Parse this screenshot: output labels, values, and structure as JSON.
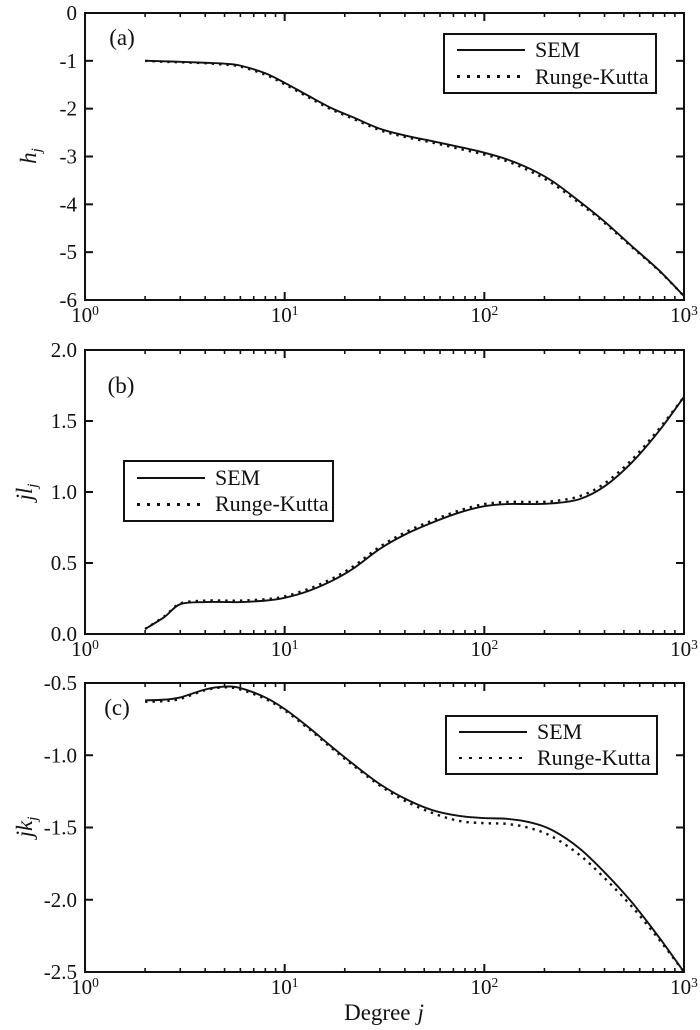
{
  "figure": {
    "background": "#ffffff",
    "ink": "#111111",
    "xlabel": {
      "text": "Degree",
      "var": "j"
    }
  },
  "legend": {
    "items": [
      {
        "label": "SEM",
        "style": "solid"
      },
      {
        "label": "Runge-Kutta",
        "style": "dotted"
      }
    ]
  },
  "chart_data": [
    {
      "type": "line",
      "panel_label": "(a)",
      "ylabel": {
        "main": "h",
        "sub": "j"
      },
      "xscale": "log",
      "xlim": [
        1,
        1000
      ],
      "ylim": [
        -6,
        0
      ],
      "xticks": [
        1,
        10,
        100,
        1000
      ],
      "yticks": [
        0,
        -1,
        -2,
        -3,
        -4,
        -5,
        -6
      ],
      "ytick_labels": [
        "0",
        "-1",
        "-2",
        "-3",
        "-4",
        "-5",
        "-6"
      ],
      "grid": false,
      "legend_position": "top-right",
      "x": [
        2,
        2.5,
        3,
        4,
        5,
        6,
        8,
        10,
        13,
        17,
        22,
        30,
        40,
        55,
        75,
        100,
        130,
        170,
        220,
        300,
        400,
        550,
        750,
        1000
      ],
      "series": [
        {
          "name": "SEM",
          "style": "solid",
          "y": [
            -1.0,
            -1.01,
            -1.02,
            -1.04,
            -1.06,
            -1.1,
            -1.26,
            -1.46,
            -1.72,
            -1.98,
            -2.18,
            -2.42,
            -2.56,
            -2.68,
            -2.8,
            -2.92,
            -3.06,
            -3.26,
            -3.52,
            -3.94,
            -4.36,
            -4.88,
            -5.38,
            -5.92
          ]
        },
        {
          "name": "Runge-Kutta",
          "style": "dotted",
          "y": [
            -1.0,
            -1.02,
            -1.03,
            -1.05,
            -1.08,
            -1.12,
            -1.29,
            -1.49,
            -1.75,
            -2.01,
            -2.21,
            -2.45,
            -2.59,
            -2.71,
            -2.84,
            -2.96,
            -3.1,
            -3.31,
            -3.57,
            -3.98,
            -4.39,
            -4.9,
            -5.39,
            -5.92
          ]
        }
      ]
    },
    {
      "type": "line",
      "panel_label": "(b)",
      "ylabel": {
        "main": "jl",
        "sub": "j"
      },
      "xscale": "log",
      "xlim": [
        1,
        1000
      ],
      "ylim": [
        0.0,
        2.0
      ],
      "xticks": [
        1,
        10,
        100,
        1000
      ],
      "yticks": [
        2.0,
        1.5,
        1.0,
        0.5,
        0.0
      ],
      "ytick_labels": [
        "2.0",
        "1.5",
        "1.0",
        "0.5",
        "0.0"
      ],
      "grid": false,
      "legend_position": "center-left",
      "x": [
        2,
        2.5,
        3,
        4,
        5,
        6,
        8,
        10,
        13,
        17,
        22,
        30,
        40,
        55,
        75,
        100,
        130,
        170,
        220,
        300,
        400,
        550,
        750,
        1000
      ],
      "series": [
        {
          "name": "SEM",
          "style": "solid",
          "y": [
            0.035,
            0.12,
            0.21,
            0.225,
            0.225,
            0.225,
            0.235,
            0.255,
            0.3,
            0.37,
            0.46,
            0.6,
            0.7,
            0.785,
            0.855,
            0.9,
            0.915,
            0.915,
            0.92,
            0.95,
            1.04,
            1.21,
            1.43,
            1.67
          ]
        },
        {
          "name": "Runge-Kutta",
          "style": "dotted",
          "y": [
            0.035,
            0.125,
            0.215,
            0.235,
            0.235,
            0.235,
            0.245,
            0.265,
            0.315,
            0.385,
            0.475,
            0.615,
            0.715,
            0.8,
            0.87,
            0.915,
            0.93,
            0.93,
            0.935,
            0.97,
            1.06,
            1.23,
            1.445,
            1.67
          ]
        }
      ]
    },
    {
      "type": "line",
      "panel_label": "(c)",
      "ylabel": {
        "main": "jk",
        "sub": "j"
      },
      "xscale": "log",
      "xlim": [
        1,
        1000
      ],
      "ylim": [
        -2.5,
        -0.5
      ],
      "xticks": [
        1,
        10,
        100,
        1000
      ],
      "yticks": [
        -0.5,
        -1.0,
        -1.5,
        -2.0,
        -2.5
      ],
      "ytick_labels": [
        "-0.5",
        "-1.0",
        "-1.5",
        "-2.0",
        "-2.5"
      ],
      "grid": false,
      "legend_position": "top-right",
      "x": [
        2,
        2.5,
        3,
        4,
        5,
        6,
        8,
        10,
        13,
        17,
        22,
        30,
        40,
        55,
        75,
        100,
        130,
        170,
        220,
        300,
        400,
        550,
        750,
        1000
      ],
      "series": [
        {
          "name": "SEM",
          "style": "solid",
          "y": [
            -0.62,
            -0.615,
            -0.6,
            -0.545,
            -0.525,
            -0.535,
            -0.6,
            -0.68,
            -0.8,
            -0.935,
            -1.06,
            -1.2,
            -1.3,
            -1.38,
            -1.42,
            -1.435,
            -1.44,
            -1.465,
            -1.52,
            -1.645,
            -1.81,
            -2.02,
            -2.26,
            -2.5
          ]
        },
        {
          "name": "Runge-Kutta",
          "style": "dotted",
          "y": [
            -0.63,
            -0.625,
            -0.61,
            -0.55,
            -0.53,
            -0.545,
            -0.61,
            -0.69,
            -0.81,
            -0.945,
            -1.07,
            -1.21,
            -1.315,
            -1.4,
            -1.455,
            -1.47,
            -1.475,
            -1.505,
            -1.565,
            -1.69,
            -1.85,
            -2.05,
            -2.275,
            -2.5
          ]
        }
      ]
    }
  ]
}
